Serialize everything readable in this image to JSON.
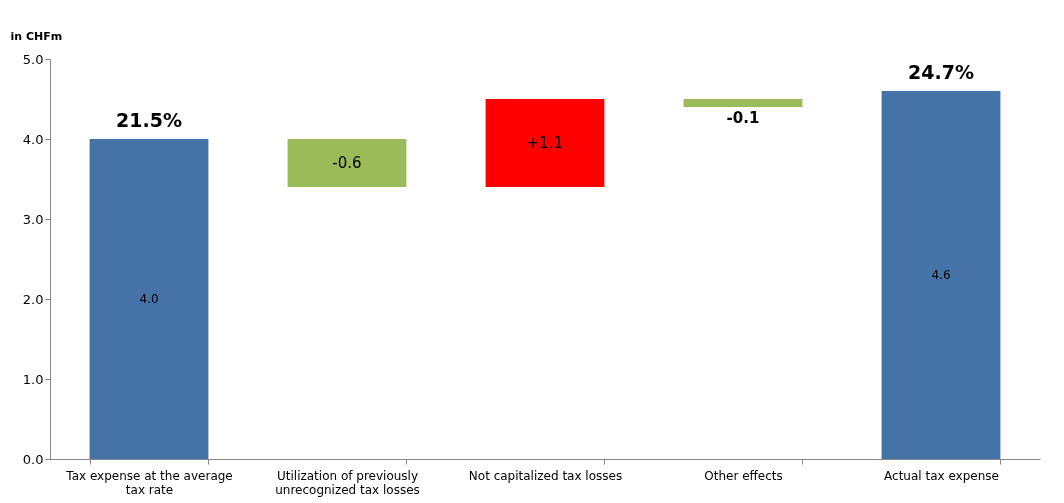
{
  "chart_data": {
    "type": "bar",
    "ylabel": "in CHFm",
    "categories": [
      "Tax expense at the average tax rate",
      "Utilization of previously unrecognized tax losses",
      "Not capitalized tax losses",
      "Other effects",
      "Actual tax expense"
    ],
    "base": [
      0,
      4.0,
      3.4,
      4.5,
      0
    ],
    "values": [
      4.0,
      -0.6,
      1.1,
      -0.1,
      4.6
    ],
    "colors": [
      "#4572a7",
      "#9bbb59",
      "#ff0000",
      "#9bbb59",
      "#4572a7"
    ],
    "value_labels": [
      "4.0",
      "-0.6",
      "+1.1",
      "-0.1",
      "4.6"
    ],
    "annotations": [
      {
        "text": "21.5%",
        "x": "Tax expense at the average tax rate",
        "y": 4.0
      },
      {
        "text": "24.7%",
        "x": "Actual tax expense",
        "y": 4.6
      }
    ],
    "ylim": [
      0,
      5
    ],
    "yticks": [
      {
        "value": 0,
        "label": "0.0"
      },
      {
        "value": 1,
        "label": "1.0"
      },
      {
        "value": 2,
        "label": "2.0"
      },
      {
        "value": 3,
        "label": "3.0"
      },
      {
        "value": 4,
        "label": "4.0"
      },
      {
        "value": 5,
        "label": "5.0"
      }
    ],
    "grid": false
  }
}
